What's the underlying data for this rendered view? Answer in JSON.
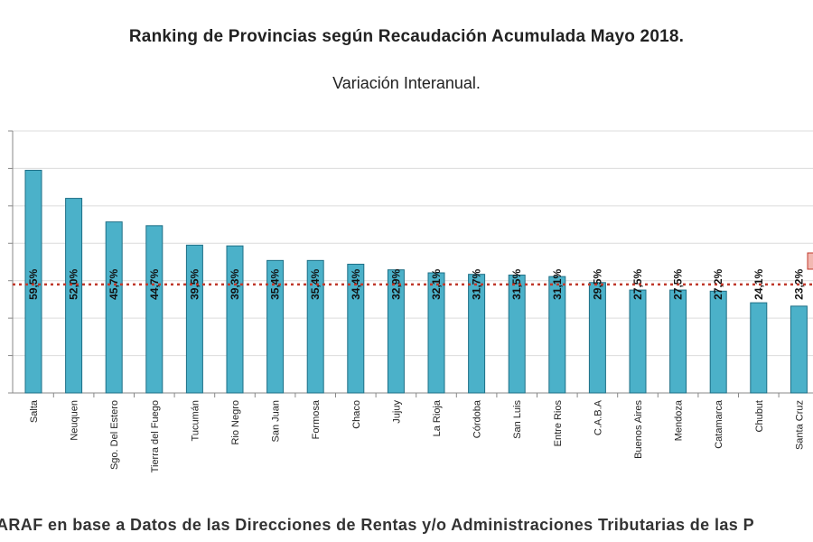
{
  "chart_data": {
    "type": "bar",
    "title": "Ranking de Provincias según Recaudación Acumulada Mayo 2018.",
    "subtitle": "Variación Interanual.",
    "categories": [
      "Salta",
      "Neuquen",
      "Sgo. Del Estero",
      "Tierra del Fuego",
      "Tucumán",
      "Rio Negro",
      "San Juan",
      "Formosa",
      "Chaco",
      "Jujuy",
      "La Rioja",
      "Córdoba",
      "San Luis",
      "Entre Rios",
      "C.A.B.A",
      "Buenos Aires",
      "Mendoza",
      "Catamarca",
      "Chubut",
      "Santa Cruz"
    ],
    "values": [
      59.5,
      52.0,
      45.7,
      44.7,
      39.5,
      39.3,
      35.4,
      35.4,
      34.4,
      32.9,
      32.1,
      31.7,
      31.5,
      31.1,
      29.5,
      27.5,
      27.5,
      27.2,
      24.1,
      23.2
    ],
    "value_labels": [
      "59,5%",
      "52,0%",
      "45,7%",
      "44,7%",
      "39,5%",
      "39,3%",
      "35,4%",
      "35,4%",
      "34,4%",
      "32,9%",
      "32,1%",
      "31,7%",
      "31,5%",
      "31,1%",
      "29,5%",
      "27,5%",
      "27,5%",
      "27,2%",
      "24,1%",
      "23,2%"
    ],
    "ylim": [
      0,
      70
    ],
    "reference_line": 29.0,
    "grid": true,
    "bar_color": "#4bb1c9",
    "bar_edge_color": "#1e6f86",
    "reference_line_color": "#c0392b"
  },
  "footer": "ARAF en base a Datos de las Direcciones de Rentas y/o Administraciones Tributarias de las P"
}
